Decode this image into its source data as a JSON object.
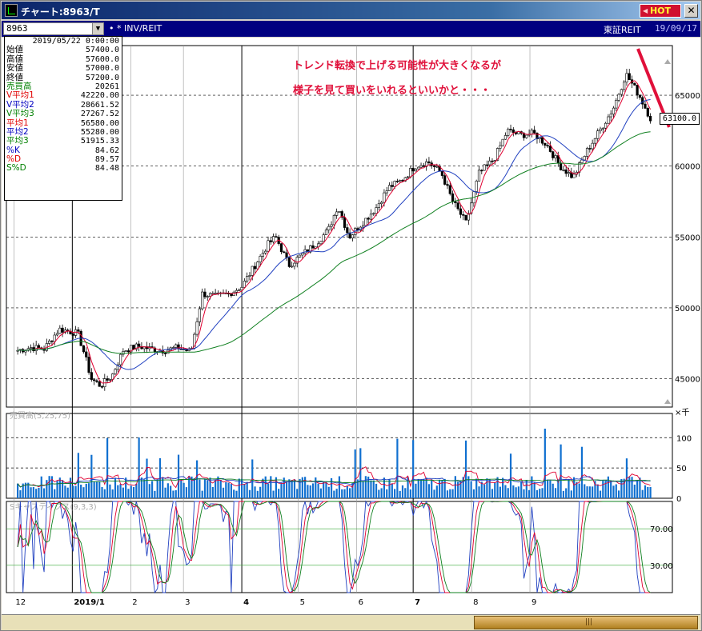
{
  "window": {
    "title": "チャート:8963/T",
    "hot_label": "HOT",
    "close_label": "✕"
  },
  "toolbar": {
    "symbol": "8963",
    "market_tag": "• * INV/REIT",
    "market_name": "東証REIT",
    "date": "19/09/17"
  },
  "info_panel": {
    "date": "2019/05/22 0:00:00",
    "rows": [
      {
        "label": "始値",
        "value": "57400.0",
        "color": "#000000"
      },
      {
        "label": "高値",
        "value": "57600.0",
        "color": "#000000"
      },
      {
        "label": "安値",
        "value": "57000.0",
        "color": "#000000"
      },
      {
        "label": "終値",
        "value": "57200.0",
        "color": "#000000"
      },
      {
        "label": "売買高",
        "value": "20261",
        "color": "#008000"
      },
      {
        "label": "V平均1",
        "value": "42220.00",
        "color": "#e00000"
      },
      {
        "label": "V平均2",
        "value": "28661.52",
        "color": "#0000c0"
      },
      {
        "label": "V平均3",
        "value": "27267.52",
        "color": "#008000"
      },
      {
        "label": "平均1",
        "value": "56580.00",
        "color": "#e00000"
      },
      {
        "label": "平均2",
        "value": "55280.00",
        "color": "#0000c0"
      },
      {
        "label": "平均3",
        "value": "51915.33",
        "color": "#008000"
      },
      {
        "label": "%K",
        "value": "84.62",
        "color": "#0000c0"
      },
      {
        "label": "%D",
        "value": "89.57",
        "color": "#e00000"
      },
      {
        "label": "S%D",
        "value": "84.48",
        "color": "#008000"
      }
    ]
  },
  "annotation": {
    "line1": "トレンド転換で上げる可能性が大きくなるが",
    "line2": "様子を見て買いをいれるといいかと・・・",
    "color": "#e0103a"
  },
  "price_tag": "63100.0",
  "chart_data": [
    {
      "type": "candlestick",
      "title": "",
      "y_ticks": [
        45000,
        50000,
        55000,
        60000,
        65000
      ],
      "y_tick_labels": [
        "45000",
        "50000",
        "55000",
        "60000",
        "65000"
      ],
      "ylim": [
        43000,
        68500
      ],
      "x_tick_labels": [
        "12",
        "2019/1",
        "2",
        "3",
        "4",
        "5",
        "6",
        "7",
        "8",
        "9"
      ],
      "close_points": [
        [
          "2018-12-03",
          47000
        ],
        [
          "2018-12-10",
          47200
        ],
        [
          "2018-12-17",
          47100
        ],
        [
          "2018-12-25",
          48500
        ],
        [
          "2019-01-04",
          48200
        ],
        [
          "2019-01-08",
          46500
        ],
        [
          "2019-01-11",
          45000
        ],
        [
          "2019-01-16",
          44500
        ],
        [
          "2019-01-22",
          45200
        ],
        [
          "2019-01-28",
          47000
        ],
        [
          "2019-02-05",
          47300
        ],
        [
          "2019-02-12",
          47100
        ],
        [
          "2019-02-19",
          47000
        ],
        [
          "2019-02-26",
          47200
        ],
        [
          "2019-03-05",
          46900
        ],
        [
          "2019-03-08",
          49000
        ],
        [
          "2019-03-11",
          51000
        ],
        [
          "2019-03-18",
          50800
        ],
        [
          "2019-03-25",
          51000
        ],
        [
          "2019-04-01",
          51500
        ],
        [
          "2019-04-08",
          53000
        ],
        [
          "2019-04-15",
          54500
        ],
        [
          "2019-04-19",
          55000
        ],
        [
          "2019-04-26",
          53000
        ],
        [
          "2019-05-10",
          54500
        ],
        [
          "2019-05-17",
          55500
        ],
        [
          "2019-05-22",
          57200
        ],
        [
          "2019-05-28",
          55000
        ],
        [
          "2019-06-04",
          56000
        ],
        [
          "2019-06-11",
          57000
        ],
        [
          "2019-06-18",
          58500
        ],
        [
          "2019-06-25",
          59000
        ],
        [
          "2019-07-02",
          60000
        ],
        [
          "2019-07-09",
          60300
        ],
        [
          "2019-07-16",
          59500
        ],
        [
          "2019-07-22",
          57500
        ],
        [
          "2019-07-29",
          56000
        ],
        [
          "2019-08-05",
          59500
        ],
        [
          "2019-08-13",
          60500
        ],
        [
          "2019-08-20",
          62500
        ],
        [
          "2019-08-27",
          62200
        ],
        [
          "2019-09-03",
          62300
        ],
        [
          "2019-09-10",
          61500
        ],
        [
          "2019-09-17",
          60000
        ],
        [
          "2019-09-24",
          59200
        ],
        [
          "2019-10-01",
          61000
        ],
        [
          "2019-10-08",
          62500
        ],
        [
          "2019-10-15",
          64000
        ],
        [
          "2019-10-22",
          66500
        ],
        [
          "2019-10-29",
          65000
        ],
        [
          "2019-11-05",
          63100
        ]
      ]
    },
    {
      "type": "bar",
      "title": "売買高(5,25,75)",
      "y_ticks": [
        0,
        50,
        100
      ],
      "y_tick_labels": [
        "0",
        "50",
        "100"
      ],
      "unit_label": "×千",
      "ylim": [
        0,
        140
      ]
    },
    {
      "type": "line",
      "title": "Sキャスティクス(9,3,3)",
      "y_ticks": [
        30,
        70
      ],
      "y_tick_labels": [
        "30.00",
        "70.00"
      ],
      "ylim": [
        0,
        100
      ]
    }
  ]
}
